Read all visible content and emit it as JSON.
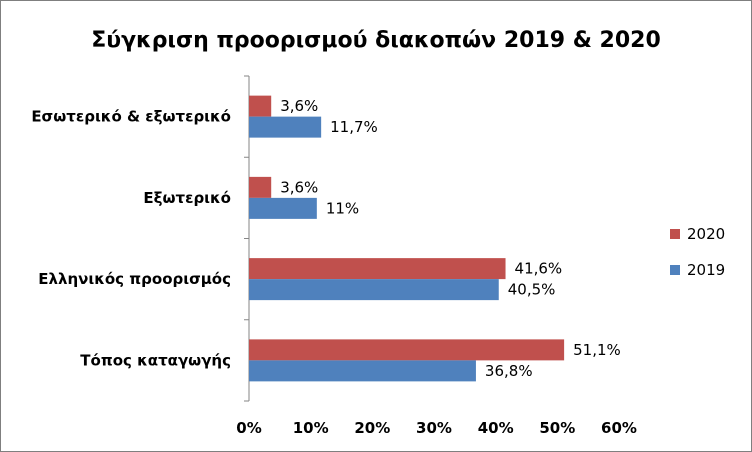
{
  "chart_data": {
    "type": "bar",
    "orientation": "horizontal",
    "title": "Σύγκριση προορισμού διακοπών 2019 & 2020",
    "categories": [
      "Εσωτερικό & εξωτερικό",
      "Εξωτερικό",
      "Ελληνικός προορισμός",
      "Τόπος καταγωγής"
    ],
    "series": [
      {
        "name": "2020",
        "values": [
          3.6,
          3.6,
          41.6,
          51.1
        ],
        "labels": [
          "3,6%",
          "3,6%",
          "41,6%",
          "51,1%"
        ],
        "color": "#c0504d"
      },
      {
        "name": "2019",
        "values": [
          11.7,
          11.0,
          40.5,
          36.8
        ],
        "labels": [
          "11,7%",
          "11%",
          "40,5%",
          "36,8%"
        ],
        "color": "#4f81bd"
      }
    ],
    "xlim": [
      0,
      60
    ],
    "xticks": [
      "0%",
      "10%",
      "20%",
      "30%",
      "40%",
      "50%",
      "60%"
    ],
    "grid": false,
    "legend_position": "right"
  }
}
